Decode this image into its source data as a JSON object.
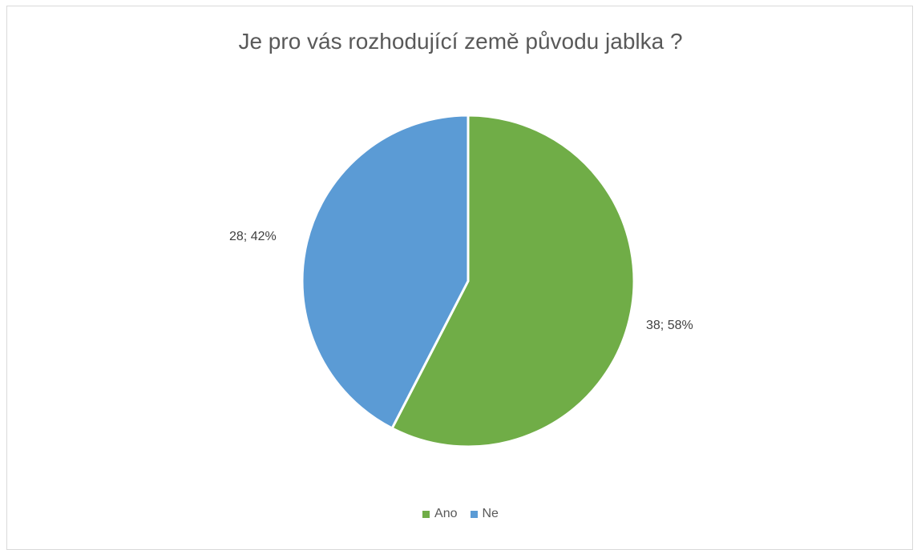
{
  "chart_data": {
    "type": "pie",
    "title": "Je pro vás rozhodující země původu jablka ?",
    "slices": [
      {
        "label": "Ano",
        "value": 38,
        "percent": 58,
        "data_label": "38; 58%",
        "color": "#70ad47"
      },
      {
        "label": "Ne",
        "value": 28,
        "percent": 42,
        "data_label": "28; 42%",
        "color": "#5b9bd5"
      }
    ],
    "legend": {
      "position": "bottom",
      "entries": [
        "Ano",
        "Ne"
      ]
    }
  }
}
